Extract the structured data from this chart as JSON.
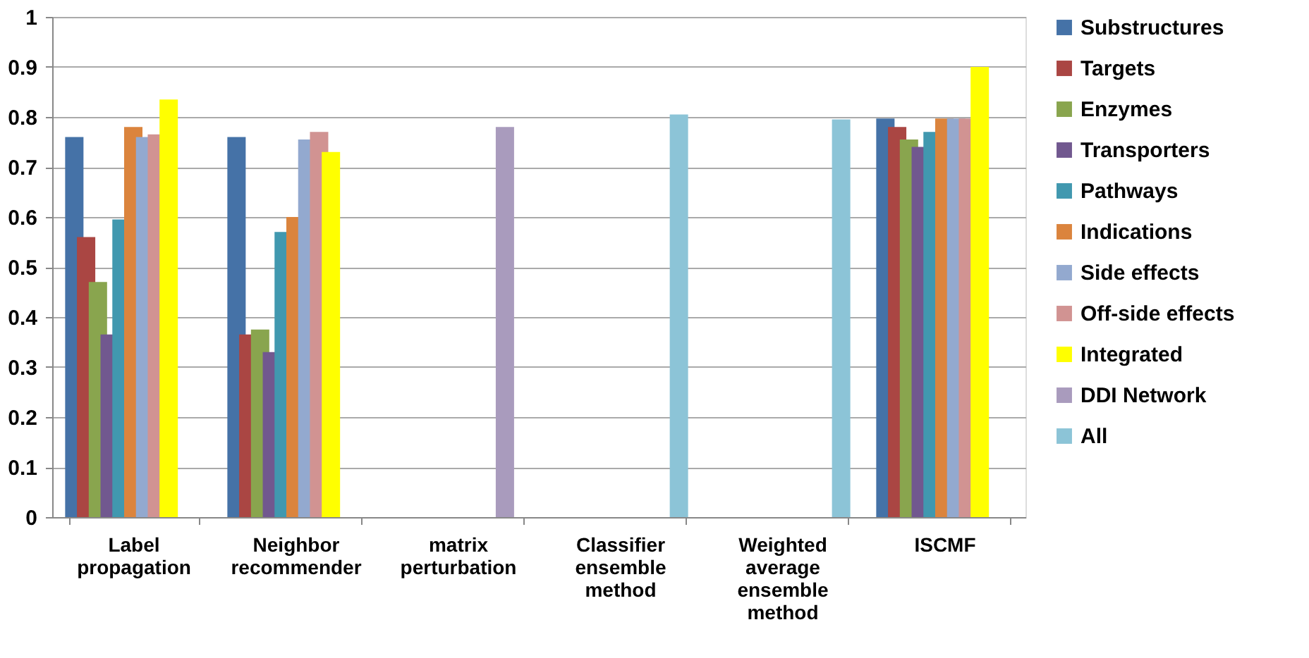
{
  "chart_data": {
    "type": "bar",
    "categories": [
      "Label\npropagation",
      "Neighbor\nrecommender",
      "matrix\nperturbation",
      "Classifier\nensemble\nmethod",
      "Weighted\naverage\nensemble\nmethod",
      "ISCMF"
    ],
    "series": [
      {
        "name": "Substructures",
        "color": "#4572a7",
        "values": [
          0.76,
          0.76,
          null,
          null,
          null,
          0.797
        ]
      },
      {
        "name": "Targets",
        "color": "#aa4643",
        "values": [
          0.56,
          0.365,
          null,
          null,
          null,
          0.78
        ]
      },
      {
        "name": "Enzymes",
        "color": "#89a54e",
        "values": [
          0.47,
          0.375,
          null,
          null,
          null,
          0.755
        ]
      },
      {
        "name": "Transporters",
        "color": "#71588f",
        "values": [
          0.365,
          0.33,
          null,
          null,
          null,
          0.74
        ]
      },
      {
        "name": "Pathways",
        "color": "#4198af",
        "values": [
          0.595,
          0.57,
          null,
          null,
          null,
          0.77
        ]
      },
      {
        "name": "Indications",
        "color": "#db843d",
        "values": [
          0.78,
          0.6,
          null,
          null,
          null,
          0.797
        ]
      },
      {
        "name": "Side effects",
        "color": "#93a9cf",
        "values": [
          0.76,
          0.755,
          null,
          null,
          null,
          0.797
        ]
      },
      {
        "name": "Off-side effects",
        "color": "#d19392",
        "values": [
          0.765,
          0.77,
          null,
          null,
          null,
          0.797
        ]
      },
      {
        "name": "Integrated",
        "color": "#ffff00",
        "values": [
          0.835,
          0.73,
          null,
          null,
          null,
          0.9
        ]
      },
      {
        "name": "DDI Network",
        "color": "#a99bbd",
        "values": [
          null,
          null,
          0.78,
          null,
          null,
          null
        ]
      },
      {
        "name": "All",
        "color": "#8cc4d7",
        "values": [
          null,
          null,
          null,
          0.805,
          0.795,
          null
        ]
      }
    ],
    "ylim": [
      0,
      1
    ],
    "yticks": [
      0,
      0.1,
      0.2,
      0.3,
      0.4,
      0.5,
      0.6,
      0.7,
      0.8,
      0.9,
      1
    ],
    "grid": "y",
    "legend": "right"
  }
}
